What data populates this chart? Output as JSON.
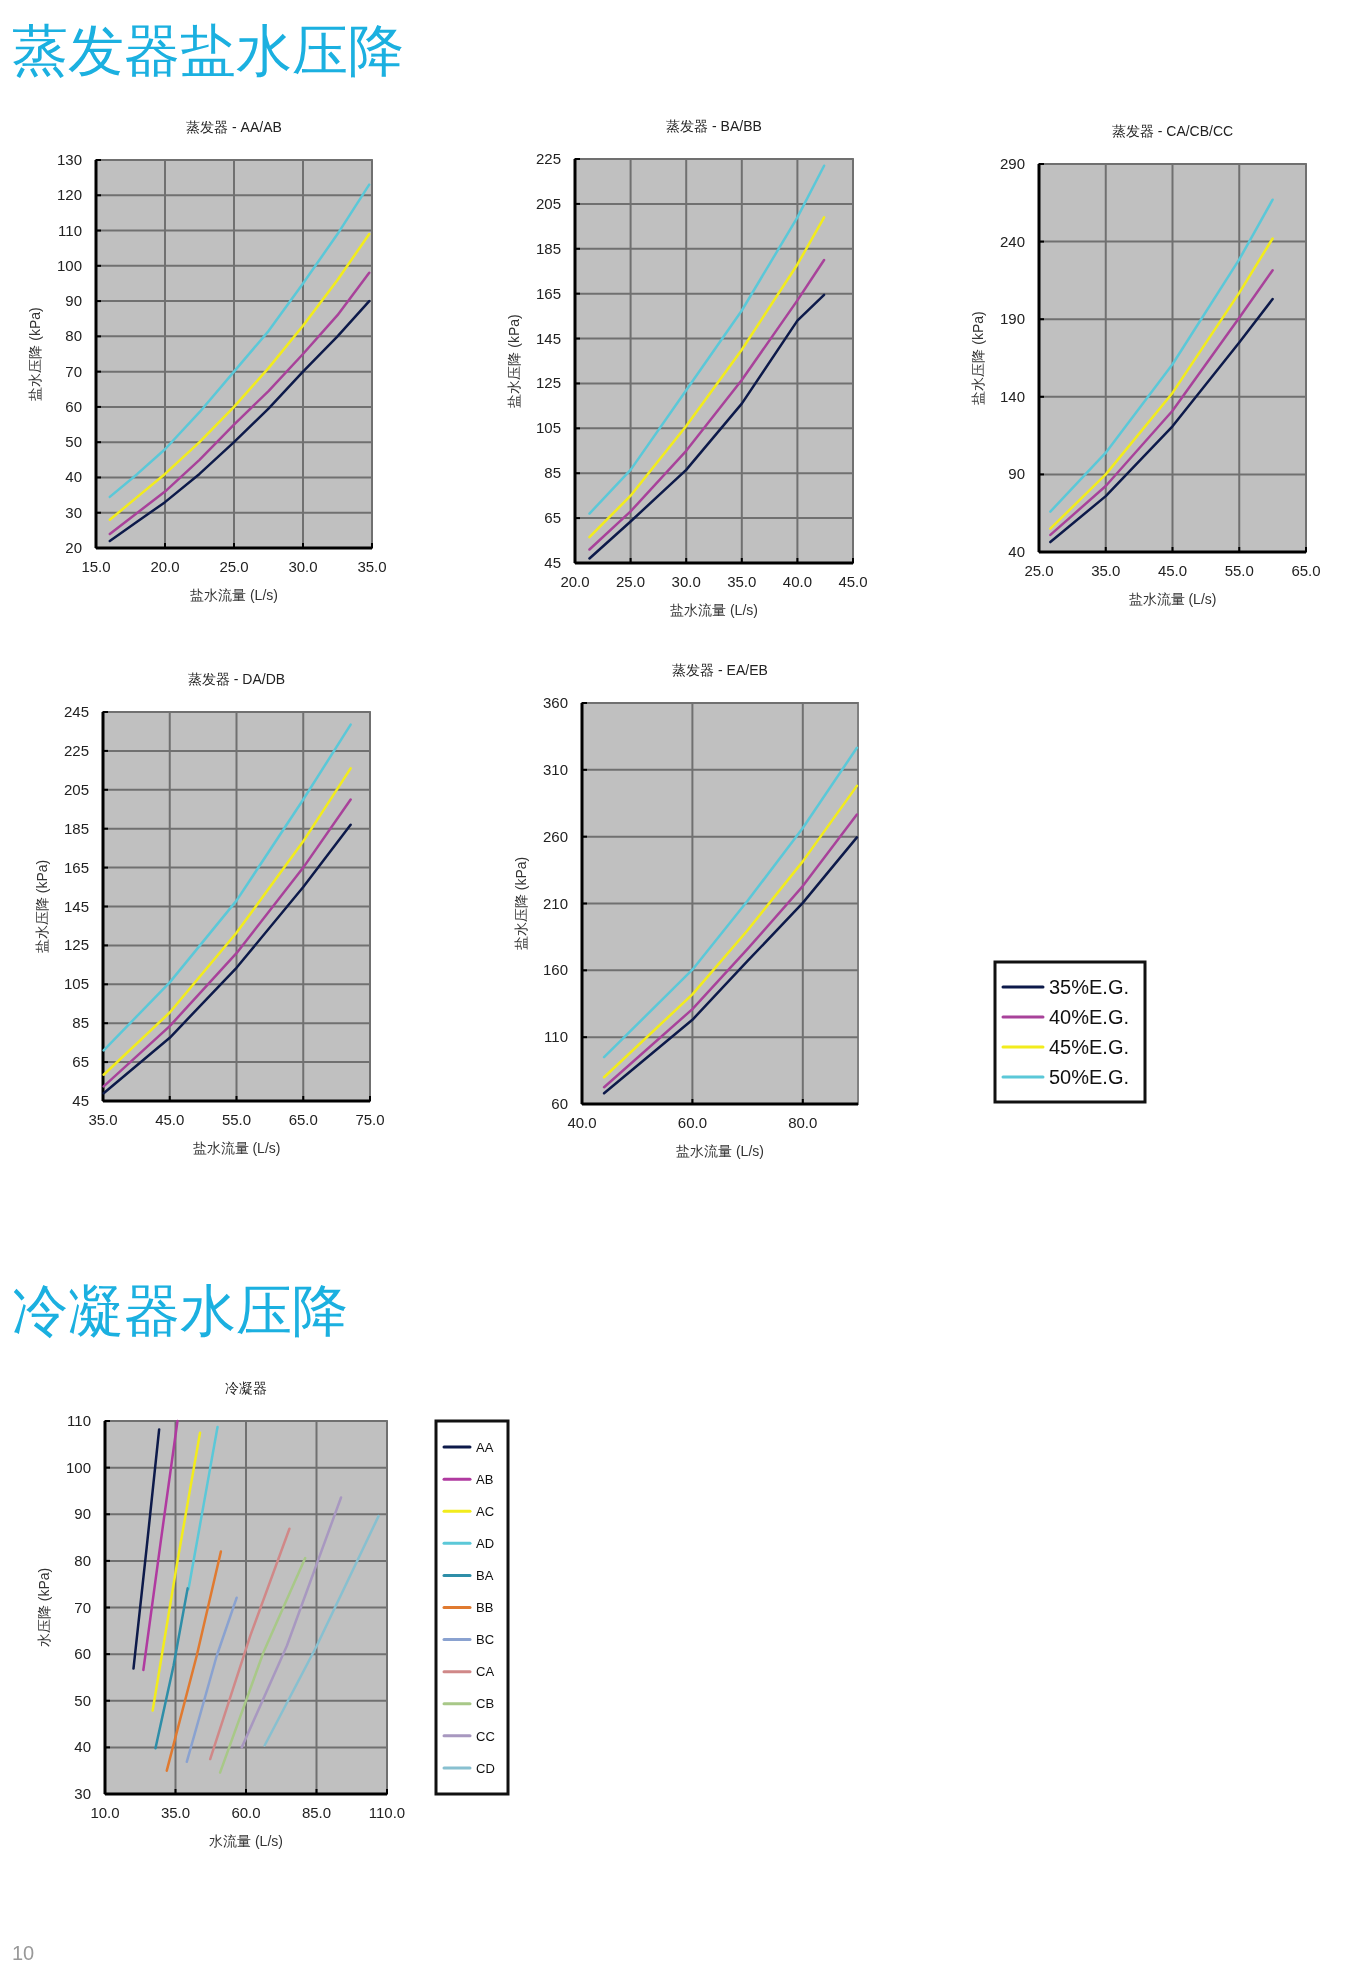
{
  "chart_data": [
    {
      "type": "line",
      "title": "蒸发器 - AA/AB",
      "xlabel": "盐水流量 (L/s)",
      "ylabel": "盐水压降 (kPa)",
      "annotations": [
        "蒸发器盐水压降"
      ],
      "xlim": [
        15,
        35
      ],
      "xticks": [
        {
          "value": 15,
          "label": "15.0"
        },
        {
          "value": 20,
          "label": "20.0"
        },
        {
          "value": 25,
          "label": "25.0"
        },
        {
          "value": 30,
          "label": "30.0"
        },
        {
          "value": 35,
          "label": "35.0"
        }
      ],
      "ylim": [
        20,
        130
      ],
      "yticks": [
        20,
        30,
        40,
        50,
        60,
        70,
        80,
        90,
        100,
        110,
        120,
        130
      ],
      "grid": true,
      "line_style": "solid",
      "series": [
        {
          "color": "#0d1a4a",
          "x": [
            16,
            18,
            20,
            22.5,
            25,
            27.5,
            30,
            32.5,
            34.8
          ],
          "values": [
            22,
            27.5,
            33,
            41,
            50,
            59.5,
            70,
            80,
            90
          ]
        },
        {
          "color": "#a8429a",
          "x": [
            16,
            18,
            20,
            22.5,
            25,
            27.5,
            30,
            32.5,
            34.8
          ],
          "values": [
            24,
            30,
            36,
            45,
            55,
            64.5,
            75,
            86,
            98
          ]
        },
        {
          "color": "#f2ec1c",
          "x": [
            16,
            18,
            20,
            22.5,
            25,
            27.5,
            30,
            32.5,
            34.8
          ],
          "values": [
            28,
            34.5,
            41,
            50,
            60,
            71,
            83,
            96,
            109
          ]
        },
        {
          "color": "#5bc8d8",
          "x": [
            16,
            18,
            20,
            22.5,
            25,
            27.5,
            30,
            32.5,
            34.8
          ],
          "values": [
            34.5,
            41,
            48,
            58.5,
            70,
            81.5,
            95,
            109,
            123
          ]
        }
      ]
    },
    {
      "type": "line",
      "title": "蒸发器 - BA/BB",
      "xlabel": "盐水流量 (L/s)",
      "ylabel": "盐水压降 (kPa)",
      "xlim": [
        20,
        45
      ],
      "xticks": [
        {
          "value": 20,
          "label": "20.0"
        },
        {
          "value": 25,
          "label": "25.0"
        },
        {
          "value": 30,
          "label": "30.0"
        },
        {
          "value": 35,
          "label": "35.0"
        },
        {
          "value": 40,
          "label": "40.0"
        },
        {
          "value": 45,
          "label": "45.0"
        }
      ],
      "ylim": [
        45,
        225
      ],
      "yticks": [
        45,
        65,
        85,
        105,
        125,
        145,
        165,
        185,
        205,
        225
      ],
      "grid": true,
      "line_style": "solid",
      "series": [
        {
          "color": "#0d1a4a",
          "x": [
            21.3,
            25,
            30,
            35,
            40,
            42.4
          ],
          "values": [
            47,
            63.5,
            86.5,
            116,
            153,
            164.5
          ]
        },
        {
          "color": "#a8429a",
          "x": [
            21.3,
            25,
            30,
            35,
            40,
            42.4
          ],
          "values": [
            51,
            68,
            95,
            126.5,
            162,
            180
          ]
        },
        {
          "color": "#f2ec1c",
          "x": [
            21.3,
            25,
            30,
            35,
            40,
            42.4
          ],
          "values": [
            56.5,
            75,
            106,
            140,
            178,
            199
          ]
        },
        {
          "color": "#5bc8d8",
          "x": [
            21.3,
            25,
            30,
            35,
            40,
            42.4
          ],
          "values": [
            67,
            86.5,
            122,
            157.5,
            199,
            222
          ]
        }
      ]
    },
    {
      "type": "line",
      "title": "蒸发器 - CA/CB/CC",
      "xlabel": "盐水流量 (L/s)",
      "ylabel": "盐水压降 (kPa)",
      "xlim": [
        25,
        65
      ],
      "xticks": [
        {
          "value": 25,
          "label": "25.0"
        },
        {
          "value": 35,
          "label": "35.0"
        },
        {
          "value": 45,
          "label": "45.0"
        },
        {
          "value": 55,
          "label": "55.0"
        },
        {
          "value": 65,
          "label": "65.0"
        }
      ],
      "ylim": [
        40,
        290
      ],
      "yticks": [
        40,
        90,
        140,
        190,
        240,
        290
      ],
      "grid": true,
      "line_style": "solid",
      "series": [
        {
          "color": "#0d1a4a",
          "x": [
            26.7,
            35,
            45,
            55,
            60
          ],
          "values": [
            46.4,
            76,
            121,
            175,
            203
          ]
        },
        {
          "color": "#a8429a",
          "x": [
            26.7,
            35,
            45,
            55,
            60
          ],
          "values": [
            51,
            82.5,
            131,
            191,
            221.5
          ]
        },
        {
          "color": "#f2ec1c",
          "x": [
            26.7,
            35,
            45,
            55,
            60
          ],
          "values": [
            55,
            90,
            142.5,
            207,
            242
          ]
        },
        {
          "color": "#5bc8d8",
          "x": [
            26.7,
            35,
            45,
            55,
            60
          ],
          "values": [
            66,
            104,
            161,
            228.5,
            267
          ]
        }
      ]
    },
    {
      "type": "line",
      "title": "蒸发器 - DA/DB",
      "xlabel": "盐水流量 (L/s)",
      "ylabel": "盐水压降 (kPa)",
      "xlim": [
        35,
        75
      ],
      "xticks": [
        {
          "value": 35,
          "label": "35.0"
        },
        {
          "value": 45,
          "label": "45.0"
        },
        {
          "value": 55,
          "label": "55.0"
        },
        {
          "value": 65,
          "label": "65.0"
        },
        {
          "value": 75,
          "label": "75.0"
        }
      ],
      "ylim": [
        45,
        245
      ],
      "yticks": [
        45,
        65,
        85,
        105,
        125,
        145,
        165,
        185,
        205,
        225,
        245
      ],
      "grid": true,
      "line_style": "solid",
      "series": [
        {
          "color": "#0d1a4a",
          "x": [
            35.1,
            45,
            55,
            65,
            72.1
          ],
          "values": [
            49,
            77.5,
            113.5,
            155,
            187
          ]
        },
        {
          "color": "#a8429a",
          "x": [
            35.1,
            45,
            55,
            65,
            72.1
          ],
          "values": [
            52.5,
            83.5,
            121,
            165,
            200
          ]
        },
        {
          "color": "#f2ec1c",
          "x": [
            35.1,
            45,
            55,
            65,
            72.1
          ],
          "values": [
            58.5,
            90.5,
            131.5,
            178.5,
            216
          ]
        },
        {
          "color": "#5bc8d8",
          "x": [
            35.1,
            45,
            55,
            65,
            72.1
          ],
          "values": [
            71,
            106,
            148,
            200,
            238.5
          ]
        }
      ]
    },
    {
      "type": "line",
      "title": "蒸发器 - EA/EB",
      "xlabel": "盐水流量 (L/s)",
      "ylabel": "盐水压降 (kPa)",
      "xlim": [
        40,
        90
      ],
      "xticks": [
        {
          "value": 40,
          "label": "40.0"
        },
        {
          "value": 60,
          "label": "60.0"
        },
        {
          "value": 80,
          "label": "80.0"
        }
      ],
      "ylim": [
        60,
        360
      ],
      "yticks": [
        60,
        110,
        160,
        210,
        260,
        310,
        360
      ],
      "grid": true,
      "line_style": "solid",
      "legend": "right",
      "series": [
        {
          "name": "35%E.G.",
          "color": "#0d1a4a",
          "x": [
            44,
            60,
            70,
            80,
            89.8
          ],
          "values": [
            68,
            123,
            167,
            210.5,
            259.5
          ]
        },
        {
          "name": "40%E.G.",
          "color": "#a8429a",
          "x": [
            44,
            60,
            70,
            80,
            89.8
          ],
          "values": [
            72.5,
            131,
            176,
            223,
            276.5
          ]
        },
        {
          "name": "45%E.G.",
          "color": "#f2ec1c",
          "x": [
            44,
            60,
            70,
            80,
            89.8
          ],
          "values": [
            80,
            142,
            190,
            241.5,
            298
          ]
        },
        {
          "name": "50%E.G.",
          "color": "#5bc8d8",
          "x": [
            44,
            60,
            70,
            80,
            89.8
          ],
          "values": [
            95,
            160.5,
            212,
            266.5,
            326.5
          ]
        }
      ]
    },
    {
      "type": "line",
      "title": "冷凝器",
      "xlabel": "水流量 (L/s)",
      "ylabel": "水压降 (kPa)",
      "annotations": [
        "冷凝器水压降",
        "10"
      ],
      "xlim": [
        10,
        110
      ],
      "xticks": [
        {
          "value": 10,
          "label": "10.0"
        },
        {
          "value": 35,
          "label": "35.0"
        },
        {
          "value": 60,
          "label": "60.0"
        },
        {
          "value": 85,
          "label": "85.0"
        },
        {
          "value": 110,
          "label": "110.0"
        }
      ],
      "ylim": [
        30,
        110
      ],
      "yticks": [
        30,
        40,
        50,
        60,
        70,
        80,
        90,
        100,
        110
      ],
      "grid": true,
      "line_style": "solid",
      "legend": "right",
      "series": [
        {
          "name": "AA",
          "color": "#0d1a4a",
          "x": [
            20.1,
            24.8,
            29.2
          ],
          "values": [
            56.9,
            83,
            108.2
          ]
        },
        {
          "name": "AB",
          "color": "#b03aa0",
          "x": [
            23.6,
            29.8,
            35.7
          ],
          "values": [
            56.6,
            84.3,
            110
          ]
        },
        {
          "name": "AC",
          "color": "#f2ec1c",
          "x": [
            26.9,
            35.4,
            43.7
          ],
          "values": [
            47.9,
            78.9,
            107.5
          ]
        },
        {
          "name": "AD",
          "color": "#5bc8d8",
          "x": [
            39.6,
            44.9,
            49.9
          ],
          "values": [
            73.9,
            91.8,
            108.7
          ]
        },
        {
          "name": "BA",
          "color": "#2e8ea8",
          "x": [
            27.9,
            34.3,
            39.3
          ],
          "values": [
            39.8,
            57.5,
            74.1
          ]
        },
        {
          "name": "BB",
          "color": "#e07a30",
          "x": [
            31.9,
            42.5,
            51.1
          ],
          "values": [
            35,
            59.6,
            82
          ]
        },
        {
          "name": "BC",
          "color": "#8aa2d0",
          "x": [
            39,
            49.6,
            56.7
          ],
          "values": [
            36.9,
            59.6,
            72.1
          ]
        },
        {
          "name": "CA",
          "color": "#d08888",
          "x": [
            47.3,
            61.5,
            75.4
          ],
          "values": [
            37.5,
            63.9,
            86.9
          ]
        },
        {
          "name": "CB",
          "color": "#a8c888",
          "x": [
            50.8,
            66.2,
            81
          ],
          "values": [
            34.6,
            60.4,
            80.6
          ]
        },
        {
          "name": "CC",
          "color": "#a898c0",
          "x": [
            58.5,
            74.5,
            93.7
          ],
          "values": [
            40,
            61.8,
            93.6
          ]
        },
        {
          "name": "CD",
          "color": "#88c0d0",
          "x": [
            66.6,
            85.1,
            107
          ],
          "values": [
            40.4,
            61.8,
            89.6
          ]
        }
      ]
    }
  ]
}
